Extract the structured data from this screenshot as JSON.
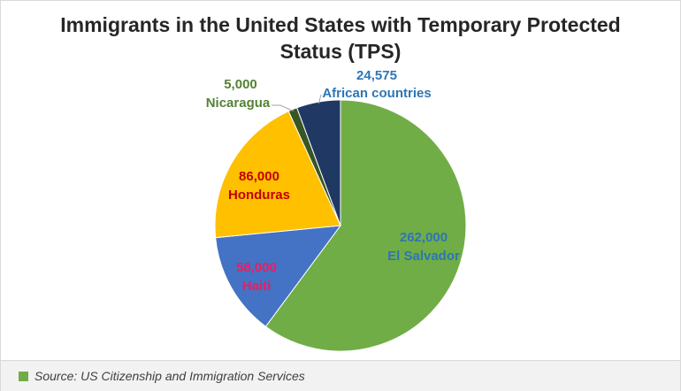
{
  "chart_data": {
    "type": "pie",
    "title": [
      "Immigrants in the United States with Temporary Protected",
      "Status (TPS)"
    ],
    "start_angle_deg": 0,
    "direction": "clockwise",
    "slices": [
      {
        "label": "El Salvador",
        "value": 262000,
        "value_label": "262,000",
        "color": "#70ad47",
        "label_color": "#2e75b6"
      },
      {
        "label": "Haiti",
        "value": 58000,
        "value_label": "58,000",
        "color": "#4472c4",
        "label_color": "#e91e63"
      },
      {
        "label": "Honduras",
        "value": 86000,
        "value_label": "86,000",
        "color": "#ffc000",
        "label_color": "#c00000"
      },
      {
        "label": "Nicaragua",
        "value": 5000,
        "value_label": "5,000",
        "color": "#375623",
        "label_color": "#548235"
      },
      {
        "label": "African countries",
        "value": 24575,
        "value_label": "24,575",
        "color": "#203864",
        "label_color": "#2e75b6"
      }
    ]
  },
  "source": {
    "text": "Source: US Citizenship and Immigration Services",
    "swatch_color": "#70ad47"
  }
}
